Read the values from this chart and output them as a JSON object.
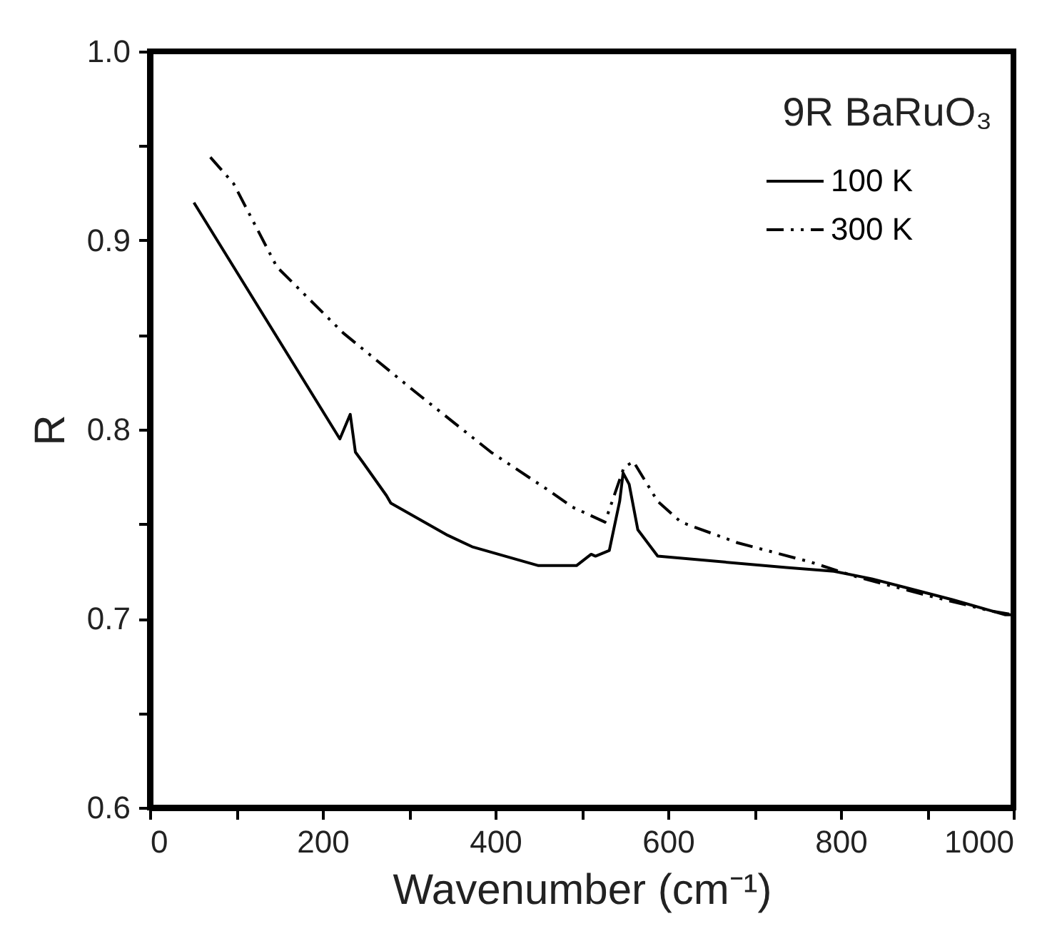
{
  "chart_data": {
    "type": "line",
    "xlabel": "Wavenumber (cm⁻¹)",
    "ylabel": "R",
    "annotations": [
      "9R  BaRuO₃"
    ],
    "xlim": [
      0,
      1000
    ],
    "ylim": [
      0.6,
      1.0
    ],
    "xticks": [
      0,
      {
        "value": 100,
        "label": null
      },
      200,
      {
        "value": 300,
        "label": null
      },
      400,
      {
        "value": 500,
        "label": null
      },
      600,
      {
        "value": 700,
        "label": null
      },
      800,
      {
        "value": 900,
        "label": null
      },
      1000
    ],
    "yticks": [
      {
        "value": 0.6,
        "label": "0.6"
      },
      {
        "value": 0.65,
        "label": null
      },
      {
        "value": 0.7,
        "label": "0.7"
      },
      {
        "value": 0.75,
        "label": null
      },
      {
        "value": 0.8,
        "label": "0.8"
      },
      {
        "value": 0.85,
        "label": null
      },
      {
        "value": 0.9,
        "label": "0.9"
      },
      {
        "value": 0.95,
        "label": null
      },
      {
        "value": 1.0,
        "label": "1.0"
      }
    ],
    "legend": "top right",
    "grid": false,
    "series": [
      {
        "name": "100 K",
        "color": "#000000",
        "line_style": "solid",
        "x": [
          51,
          220,
          232,
          238,
          246,
          274,
          279,
          345,
          373,
          450,
          494,
          511,
          516,
          532,
          544,
          548,
          555,
          565,
          588,
          737,
          792,
          836,
          929,
          990,
          1000
        ],
        "values": [
          0.92,
          0.795,
          0.808,
          0.788,
          0.783,
          0.765,
          0.761,
          0.744,
          0.738,
          0.728,
          0.728,
          0.734,
          0.733,
          0.736,
          0.762,
          0.777,
          0.771,
          0.747,
          0.733,
          0.727,
          0.725,
          0.721,
          0.71,
          0.702,
          0.702
        ]
      },
      {
        "name": "300 K",
        "color": "#000000",
        "line_style": "dashed",
        "x": [
          70,
          97,
          147,
          224,
          307,
          395,
          461,
          489,
          527,
          549,
          560,
          588,
          615,
          681,
          764,
          819,
          902,
          974,
          1000
        ],
        "values": [
          0.944,
          0.93,
          0.886,
          0.851,
          0.82,
          0.788,
          0.768,
          0.759,
          0.751,
          0.78,
          0.783,
          0.762,
          0.751,
          0.74,
          0.73,
          0.722,
          0.712,
          0.704,
          0.702
        ]
      }
    ]
  }
}
